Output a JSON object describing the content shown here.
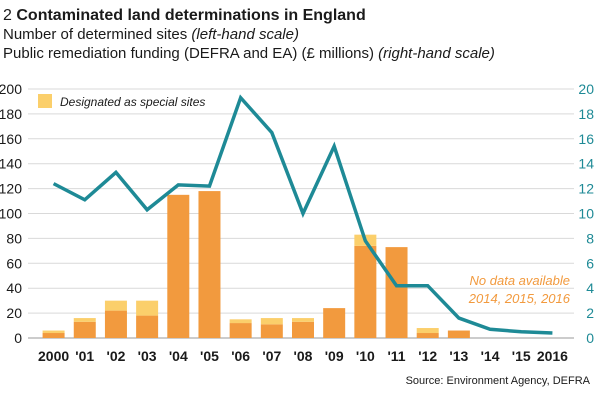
{
  "title": {
    "number": "2",
    "text": "Contaminated land determinations in England",
    "line2_main": "Number of determined sites",
    "line2_scale": "(left-hand scale)",
    "line3_main": "Public remediation funding (DEFRA and EA) (£ millions)",
    "line3_scale": "(right-hand scale)"
  },
  "legend": {
    "special_label": "Designated as special sites"
  },
  "note": {
    "line1": "No data available",
    "line2": "2014, 2015, 2016"
  },
  "source": "Source: Environment Agency, DEFRA",
  "colors": {
    "bar": "#f29a3e",
    "special": "#fbcf6b",
    "line": "#1e8a96",
    "grid": "#d9d9d9",
    "right_axis_text": "#1e8a96"
  },
  "chart_data": {
    "type": "bar+line",
    "categories": [
      "2000",
      "'01",
      "'02",
      "'03",
      "'04",
      "'05",
      "'06",
      "'07",
      "'08",
      "'09",
      "'10",
      "'11",
      "'12",
      "'13",
      "'14",
      "'15",
      "2016"
    ],
    "left_axis": {
      "ylim": [
        0,
        200
      ],
      "ticks": [
        0,
        20,
        40,
        60,
        80,
        100,
        120,
        140,
        160,
        180,
        200
      ],
      "label": "Number of determined sites"
    },
    "right_axis": {
      "ylim": [
        0,
        20
      ],
      "ticks": [
        0,
        2,
        4,
        6,
        8,
        10,
        12,
        14,
        16,
        18,
        20
      ],
      "label": "Public remediation funding (£ millions)"
    },
    "series": [
      {
        "name": "Determined sites",
        "kind": "bar",
        "axis": "left",
        "values": [
          4,
          13,
          22,
          18,
          115,
          118,
          12,
          11,
          13,
          24,
          74,
          73,
          4,
          6,
          null,
          null,
          null
        ]
      },
      {
        "name": "Designated as special sites",
        "kind": "bar-stacked",
        "axis": "left",
        "values": [
          2,
          3,
          8,
          12,
          0,
          0,
          3,
          5,
          3,
          0,
          9,
          0,
          4,
          0,
          null,
          null,
          null
        ]
      },
      {
        "name": "Public remediation funding",
        "kind": "line",
        "axis": "right",
        "values": [
          12.4,
          11.1,
          13.3,
          10.3,
          12.3,
          12.2,
          19.3,
          16.5,
          10.0,
          15.4,
          7.8,
          4.2,
          4.2,
          1.6,
          0.7,
          0.5,
          0.4
        ]
      }
    ]
  }
}
